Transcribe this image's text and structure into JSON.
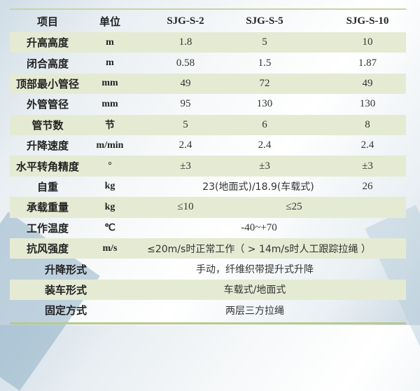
{
  "header": {
    "item": "项目",
    "unit": "单位",
    "models": [
      "SJG-S-2",
      "SJG-S-5",
      "SJG-S-10"
    ]
  },
  "rows": [
    {
      "item": "升高高度",
      "unit": "m",
      "values": [
        "1.8",
        "5",
        "10"
      ]
    },
    {
      "item": "闭合高度",
      "unit": "m",
      "values": [
        "0.58",
        "1.5",
        "1.87"
      ]
    },
    {
      "item": "顶部最小管径",
      "unit": "mm",
      "values": [
        "49",
        "72",
        "49"
      ]
    },
    {
      "item": "外管管径",
      "unit": "mm",
      "values": [
        "95",
        "130",
        "130"
      ]
    },
    {
      "item": "管节数",
      "unit": "节",
      "values": [
        "5",
        "6",
        "8"
      ]
    },
    {
      "item": "升降速度",
      "unit": "m/min",
      "values": [
        "2.4",
        "2.4",
        "2.4"
      ]
    },
    {
      "item": "水平转角精度",
      "unit": "°",
      "values": [
        "±3",
        "±3",
        "±3"
      ]
    },
    {
      "item": "自重",
      "unit": "kg",
      "values": [
        "23(地面式)/18.9(车载式)",
        "26"
      ]
    },
    {
      "item": "承载重量",
      "unit": "kg",
      "values": [
        "≤10",
        "≤25"
      ]
    },
    {
      "item": "工作温度",
      "unit": "℃",
      "values": [
        "-40~+70"
      ]
    },
    {
      "item": "抗风强度",
      "unit": "m/s",
      "values": [
        "≤20m/s时正常工作（ > 14m/s时人工跟踪拉绳 ）"
      ]
    },
    {
      "item": "升降形式",
      "values": [
        "手动，纤维织带提升式升降"
      ]
    },
    {
      "item": "装车形式",
      "values": [
        "车载式/地面式"
      ]
    },
    {
      "item": "固定方式",
      "values": [
        "两层三方拉绳"
      ]
    }
  ]
}
